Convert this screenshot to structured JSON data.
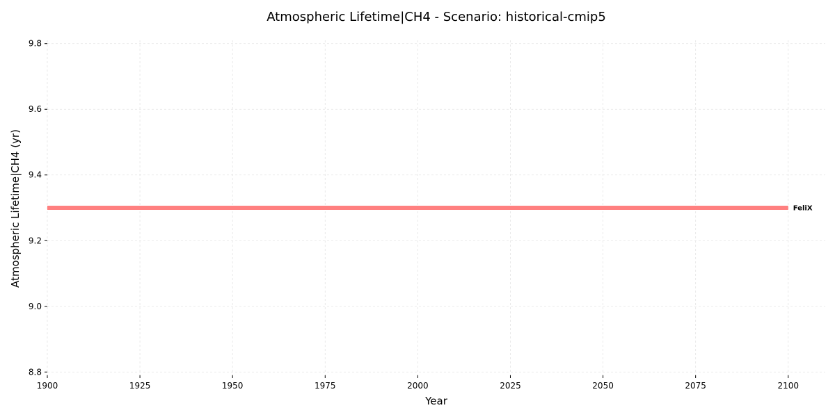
{
  "chart_data": {
    "type": "line",
    "title": "Atmospheric Lifetime|CH4 - Scenario: historical-cmip5",
    "xlabel": "Year",
    "ylabel": "Atmospheric Lifetime|CH4 (yr)",
    "xlim": [
      1900,
      2110
    ],
    "ylim": [
      8.79,
      9.81
    ],
    "xticks": [
      1900,
      1925,
      1950,
      1975,
      2000,
      2025,
      2050,
      2075,
      2100
    ],
    "yticks": [
      8.8,
      9.0,
      9.2,
      9.4,
      9.6,
      9.8
    ],
    "ytick_labels": [
      "8.8",
      "9.0",
      "9.2",
      "9.4",
      "9.6",
      "9.8"
    ],
    "grid": true,
    "series": [
      {
        "name": "FeliX",
        "color": "#ff8080",
        "x": [
          1900,
          2100
        ],
        "y": [
          9.3,
          9.3
        ]
      }
    ]
  }
}
